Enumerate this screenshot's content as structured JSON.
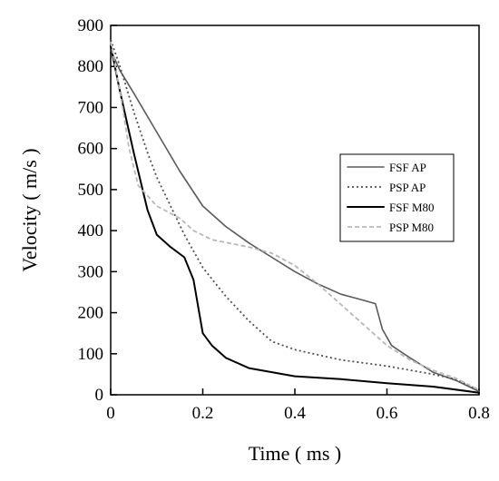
{
  "chart_data": {
    "type": "line",
    "xlabel": "Time ( ms )",
    "ylabel": "Velocity ( m/s )",
    "xlim": [
      0,
      0.8
    ],
    "ylim": [
      0,
      900
    ],
    "xticks": [
      "0",
      "0.2",
      "0.4",
      "0.6",
      "0.8"
    ],
    "yticks": [
      "0",
      "100",
      "200",
      "300",
      "400",
      "500",
      "600",
      "700",
      "800",
      "900"
    ],
    "grid": false,
    "legend_position": "right",
    "series": [
      {
        "name": "FSF AP",
        "color": "#5a5a5a",
        "dash": "solid-thin",
        "points": [
          [
            0,
            840
          ],
          [
            0.02,
            790
          ],
          [
            0.05,
            735
          ],
          [
            0.1,
            640
          ],
          [
            0.15,
            545
          ],
          [
            0.2,
            460
          ],
          [
            0.25,
            410
          ],
          [
            0.3,
            370
          ],
          [
            0.35,
            335
          ],
          [
            0.4,
            300
          ],
          [
            0.45,
            270
          ],
          [
            0.5,
            245
          ],
          [
            0.55,
            230
          ],
          [
            0.575,
            222
          ],
          [
            0.59,
            160
          ],
          [
            0.61,
            120
          ],
          [
            0.65,
            90
          ],
          [
            0.7,
            55
          ],
          [
            0.75,
            35
          ],
          [
            0.8,
            8
          ]
        ]
      },
      {
        "name": "PSP AP",
        "color": "#505050",
        "dash": "dotted",
        "points": [
          [
            0,
            865
          ],
          [
            0.02,
            800
          ],
          [
            0.05,
            690
          ],
          [
            0.08,
            590
          ],
          [
            0.1,
            530
          ],
          [
            0.13,
            460
          ],
          [
            0.16,
            390
          ],
          [
            0.2,
            310
          ],
          [
            0.25,
            240
          ],
          [
            0.3,
            180
          ],
          [
            0.35,
            130
          ],
          [
            0.4,
            110
          ],
          [
            0.5,
            85
          ],
          [
            0.6,
            70
          ],
          [
            0.7,
            50
          ],
          [
            0.75,
            38
          ],
          [
            0.8,
            10
          ]
        ]
      },
      {
        "name": "FSF M80",
        "color": "#000000",
        "dash": "solid",
        "points": [
          [
            0,
            850
          ],
          [
            0.02,
            740
          ],
          [
            0.05,
            590
          ],
          [
            0.08,
            450
          ],
          [
            0.1,
            390
          ],
          [
            0.13,
            360
          ],
          [
            0.16,
            335
          ],
          [
            0.18,
            280
          ],
          [
            0.2,
            150
          ],
          [
            0.22,
            120
          ],
          [
            0.25,
            90
          ],
          [
            0.3,
            65
          ],
          [
            0.4,
            45
          ],
          [
            0.5,
            38
          ],
          [
            0.6,
            28
          ],
          [
            0.7,
            20
          ],
          [
            0.8,
            5
          ]
        ]
      },
      {
        "name": "PSP M80",
        "color": "#b8b8b8",
        "dash": "dashed",
        "points": [
          [
            0,
            860
          ],
          [
            0.02,
            740
          ],
          [
            0.04,
            600
          ],
          [
            0.06,
            510
          ],
          [
            0.1,
            460
          ],
          [
            0.15,
            430
          ],
          [
            0.18,
            400
          ],
          [
            0.22,
            378
          ],
          [
            0.3,
            360
          ],
          [
            0.35,
            345
          ],
          [
            0.4,
            315
          ],
          [
            0.45,
            270
          ],
          [
            0.5,
            220
          ],
          [
            0.55,
            170
          ],
          [
            0.6,
            120
          ],
          [
            0.65,
            85
          ],
          [
            0.7,
            60
          ],
          [
            0.75,
            40
          ],
          [
            0.8,
            12
          ]
        ]
      }
    ]
  }
}
